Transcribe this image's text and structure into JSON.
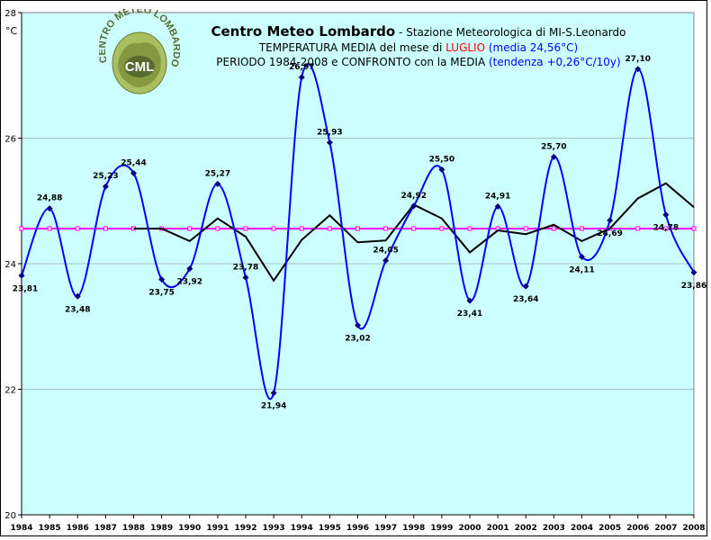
{
  "title": {
    "main": "Centro Meteo Lombardo",
    "sep": " - ",
    "station": "Stazione Meteorologica di MI-S.Leonardo",
    "line2_prefix": "TEMPERATURA MEDIA del mese di ",
    "line2_month": "LUGLIO",
    "line2_suffix": " (media 24,56°C)",
    "line3_prefix": "PERIODO 1984-2008 e CONFRONTO con la MEDIA ",
    "line3_suffix": "(tendenza +0,26°C/10y)"
  },
  "logo": {
    "ring_text": "CENTRO METEO LOMBARDO",
    "center_text": "CML"
  },
  "colors": {
    "plot_bg": "#ccffff",
    "series": "#0000ff",
    "mean": "#ff00ff",
    "trend": "#000000",
    "grid": "#808080"
  },
  "chart_data": {
    "type": "line",
    "title": "Centro Meteo Lombardo - Stazione Meteorologica di MI-S.Leonardo",
    "ylabel": "°C",
    "xlabel": "",
    "ylim": [
      20,
      28
    ],
    "yticks": [
      20,
      22,
      24,
      26,
      28
    ],
    "grid": true,
    "x": [
      1984,
      1985,
      1986,
      1987,
      1988,
      1989,
      1990,
      1991,
      1992,
      1993,
      1994,
      1995,
      1996,
      1997,
      1998,
      1999,
      2000,
      2001,
      2002,
      2003,
      2004,
      2005,
      2006,
      2007,
      2008
    ],
    "series": [
      {
        "name": "",
        "style": "smooth-line-markers",
        "values": [
          23.81,
          24.88,
          23.48,
          25.23,
          25.44,
          23.75,
          23.92,
          25.27,
          23.78,
          21.94,
          26.97,
          25.93,
          23.02,
          24.05,
          24.92,
          25.5,
          23.41,
          24.91,
          23.64,
          25.7,
          24.11,
          24.69,
          27.1,
          24.78,
          23.86
        ],
        "labels": [
          "23,81",
          "24,88",
          "23,48",
          "25,23",
          "25,44",
          "23,75",
          "23,92",
          "25,27",
          "23,78",
          "21,94",
          "26,97",
          "25,93",
          "23,02",
          "24,05",
          "24,92",
          "25,50",
          "23,41",
          "24,91",
          "23,64",
          "25,70",
          "24,11",
          "24,69",
          "27,10",
          "24,78",
          "23,86"
        ]
      },
      {
        "name": "",
        "style": "mean-line-markers",
        "values": [
          24.56,
          24.56,
          24.56,
          24.56,
          24.56,
          24.56,
          24.56,
          24.56,
          24.56,
          24.56,
          24.56,
          24.56,
          24.56,
          24.56,
          24.56,
          24.56,
          24.56,
          24.56,
          24.56,
          24.56,
          24.56,
          24.56,
          24.56,
          24.56,
          24.56
        ]
      },
      {
        "name": "",
        "style": "moving-average",
        "x": [
          1988,
          1989,
          1990,
          1991,
          1992,
          1993,
          1994,
          1995,
          1996,
          1997,
          1998,
          1999,
          2000,
          2001,
          2002,
          2003,
          2004,
          2005,
          2006,
          2007,
          2008
        ],
        "values": [
          24.56,
          24.56,
          24.36,
          24.72,
          24.43,
          23.73,
          24.38,
          24.77,
          24.34,
          24.37,
          24.94,
          24.72,
          24.18,
          24.53,
          24.47,
          24.62,
          24.36,
          24.56,
          25.04,
          25.28,
          24.9
        ]
      }
    ],
    "xtick_labels": [
      "1984",
      "1985",
      "1986",
      "1987",
      "1988",
      "1989",
      "1990",
      "1991",
      "1992",
      "1993",
      "1994",
      "1995",
      "1996",
      "1997",
      "1998",
      "1999",
      "2000",
      "2001",
      "2002",
      "2003",
      "2004",
      "2005",
      "2006",
      "2007",
      "2008"
    ],
    "ytick_labels": [
      "20",
      "22",
      "24",
      "26",
      "28"
    ]
  }
}
